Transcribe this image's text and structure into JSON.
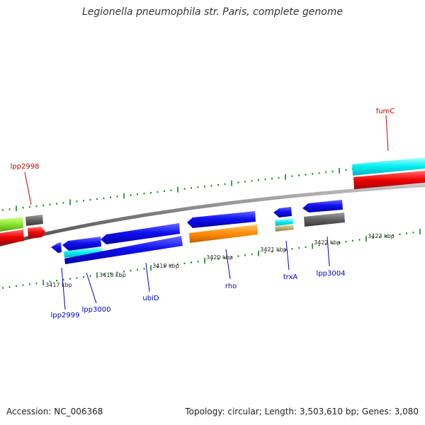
{
  "title": "Legionella pneumophila str. Paris, complete genome",
  "footer": {
    "accession": "Accession: NC_006368",
    "summary": "Topology: circular; Length: 3,503,610 bp; Genes: 3,080"
  },
  "ticks": [
    "3417 kbp",
    "3418 kbp",
    "3419 kbp",
    "3420 kbp",
    "3421 kbp",
    "3422 kbp",
    "3423 kbp"
  ],
  "genes": [
    "lpp2998",
    "fumC",
    "lpp2999",
    "lpp3000",
    "ubiD",
    "rho",
    "trxA",
    "lpp3004"
  ],
  "colors": {
    "blue": "#0a0ae6",
    "cyan": "#00e8ee",
    "red": "#ee0000",
    "orange": "#ff8c00",
    "green": "#88ee22",
    "gray": "#555555",
    "khaki": "#b0a860",
    "backbone": "#808080",
    "dots": "#1e7f1e",
    "label_red": "#cc0000",
    "label_blue": "#0000cc"
  }
}
